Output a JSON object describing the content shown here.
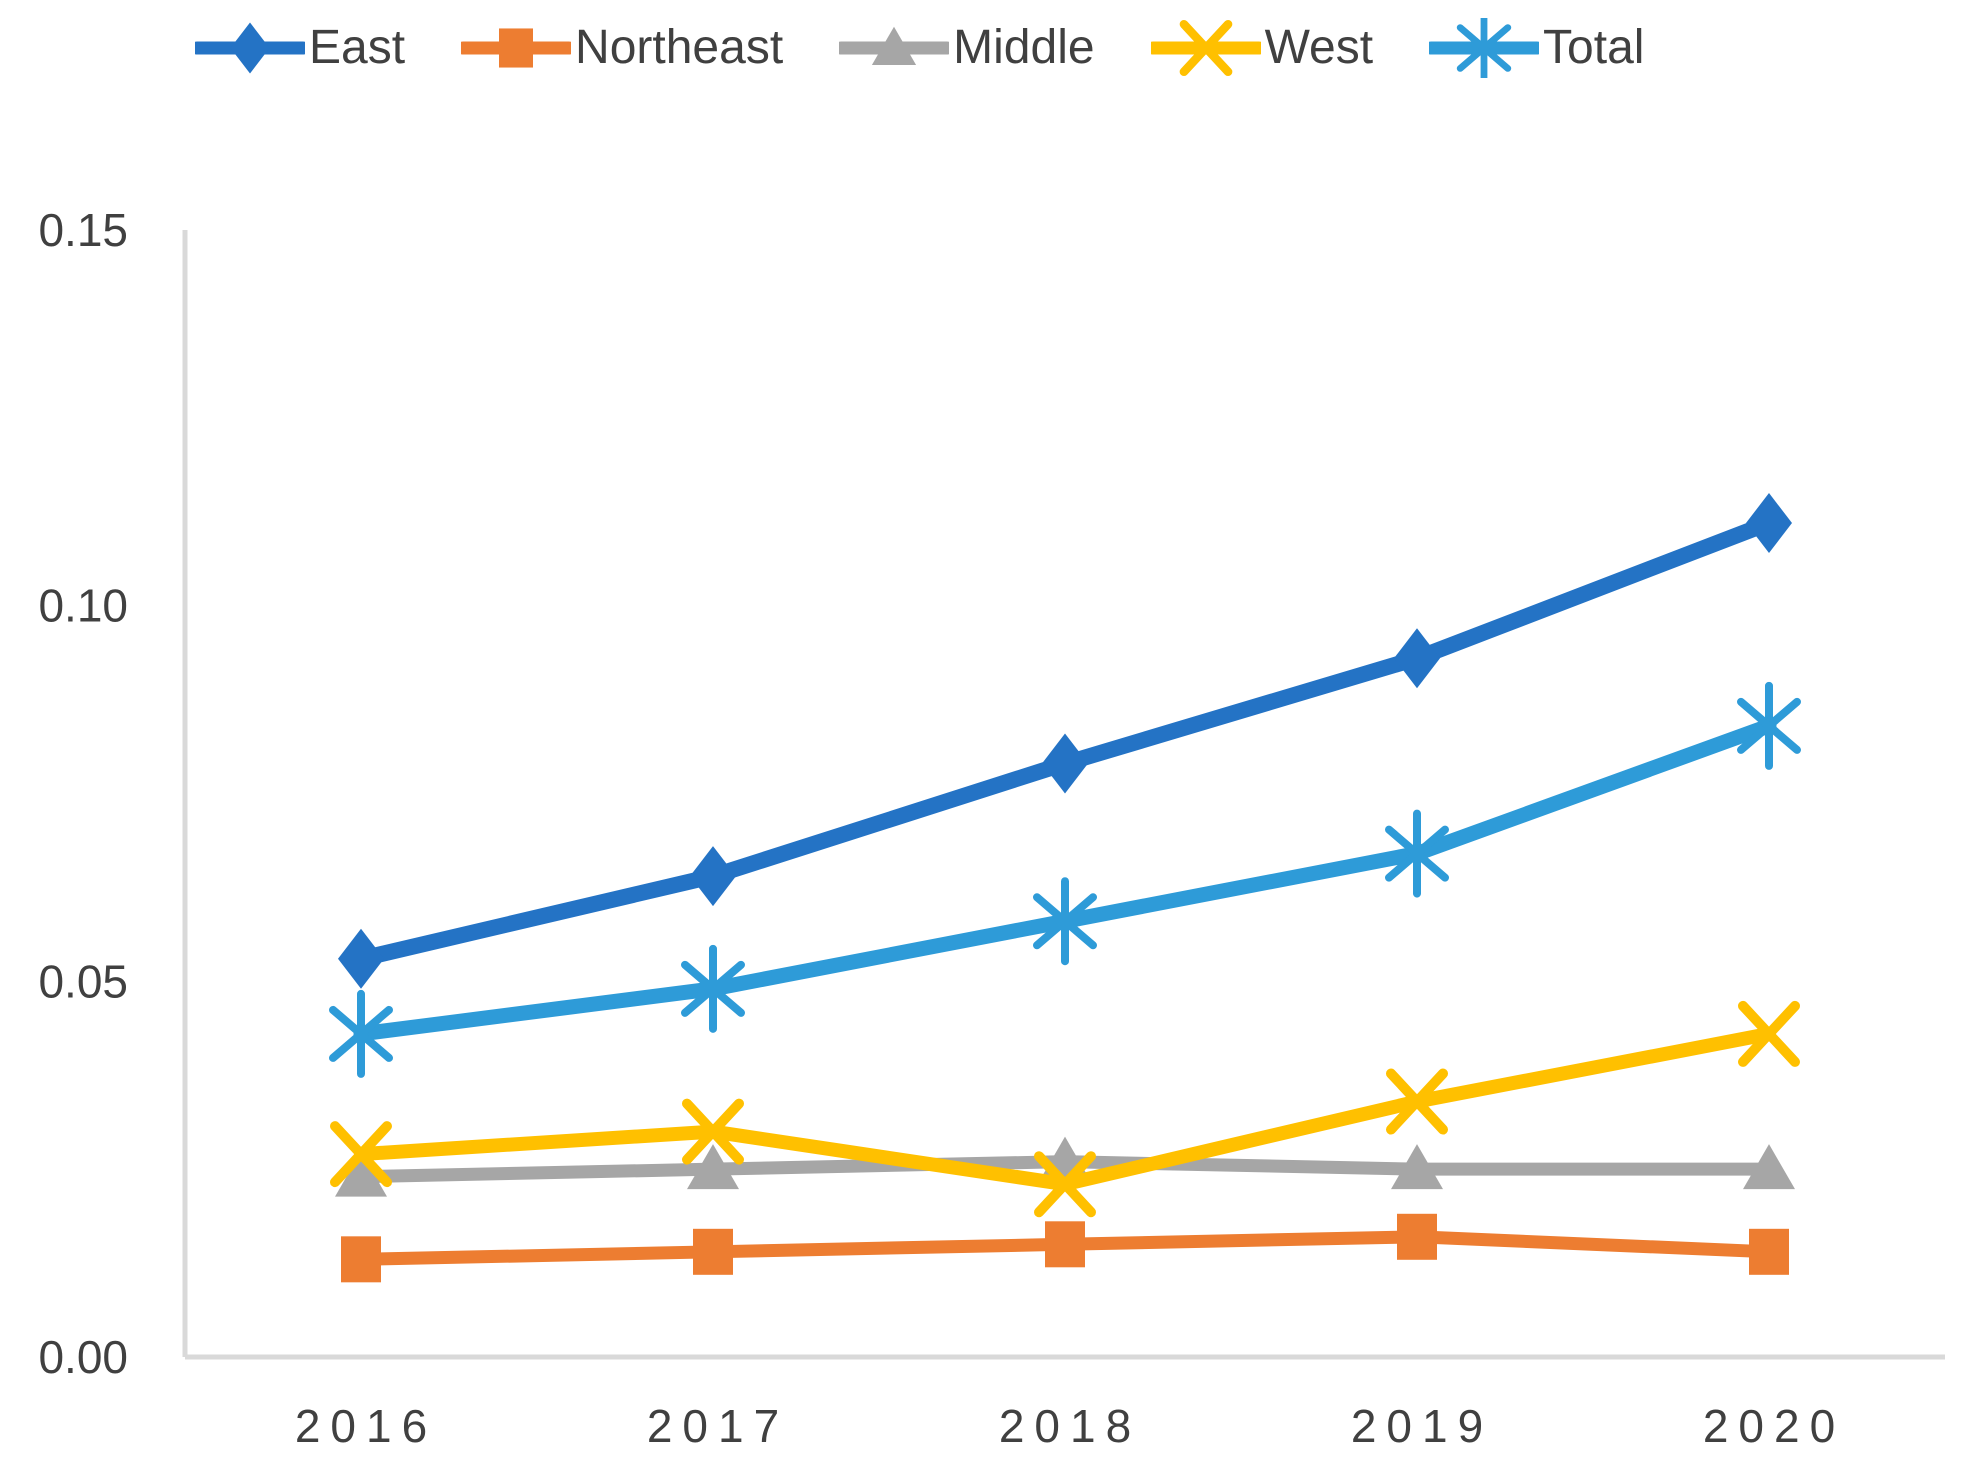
{
  "chart_data": {
    "type": "line",
    "title": "",
    "xlabel": "",
    "ylabel": "",
    "categories": [
      "2016",
      "2017",
      "2018",
      "2019",
      "2020"
    ],
    "series": [
      {
        "name": "East",
        "marker": "diamond",
        "color": "#2473C5",
        "values": [
          0.053,
          0.064,
          0.079,
          0.093,
          0.111
        ]
      },
      {
        "name": "Northeast",
        "marker": "square",
        "color": "#ED7D31",
        "values": [
          0.013,
          0.014,
          0.015,
          0.016,
          0.014
        ]
      },
      {
        "name": "Middle",
        "marker": "triangle",
        "color": "#A6A6A6",
        "values": [
          0.024,
          0.025,
          0.026,
          0.025,
          0.025
        ]
      },
      {
        "name": "West",
        "marker": "x",
        "color": "#FFC000",
        "values": [
          0.027,
          0.03,
          0.023,
          0.034,
          0.043
        ]
      },
      {
        "name": "Total",
        "marker": "asterisk",
        "color": "#2E9BD8",
        "values": [
          0.043,
          0.049,
          0.058,
          0.067,
          0.084
        ]
      }
    ],
    "y_axis": {
      "min": 0,
      "max": 0.15,
      "ticks": [
        0.0,
        0.05,
        0.1,
        0.15
      ],
      "tick_labels": [
        "0.00",
        "0.05",
        "0.10",
        "0.15"
      ]
    },
    "grid": false,
    "legend_position": "top",
    "axis_color": "#D9D9D9",
    "label_color": "#404040"
  }
}
